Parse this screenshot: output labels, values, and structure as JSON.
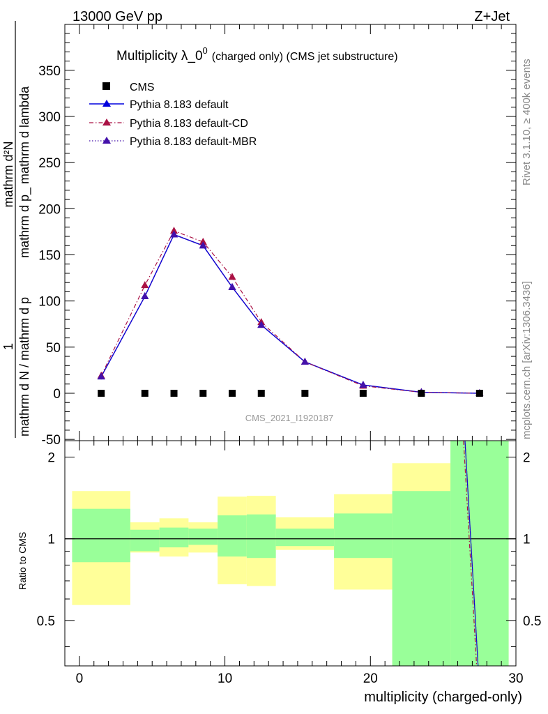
{
  "header": {
    "left": "13000 GeV pp",
    "right": "Z+Jet"
  },
  "side_labels": {
    "rivet": "Rivet 3.1.10, ≥ 400k events",
    "mcplots": "mcplots.cern.ch [arXiv:1306.3436]"
  },
  "colors": {
    "cms": "#000000",
    "default": "#0000dd",
    "cd": "#aa1144",
    "mbr": "#4411aa",
    "band_inner": "#99ff99",
    "band_outer": "#ffff99"
  },
  "chart_data": [
    {
      "type": "line",
      "title": "Multiplicity λ_0",
      "title_sup": "0",
      "title_suffix": "(charged only) (CMS jet substructure)",
      "watermark": "CMS_2021_I1920187",
      "ylabel_num": "1",
      "ylabel_den": "mathrm d N / mathrm d p",
      "ylabel_frac": "mathrm d²N",
      "ylabel_frac_den": "mathrm d p_ mathrm d lambda",
      "ylim": [
        -50,
        400
      ],
      "yticks": [
        -50,
        0,
        50,
        100,
        150,
        200,
        250,
        300,
        350
      ],
      "xlim": [
        -1,
        30
      ],
      "legend": [
        {
          "name": "CMS",
          "style": "marker-square"
        },
        {
          "name": "Pythia 8.183 default",
          "style": "solid"
        },
        {
          "name": "Pythia 8.183 default-CD",
          "style": "dashdot"
        },
        {
          "name": "Pythia 8.183 default-MBR",
          "style": "dotted"
        }
      ],
      "series": [
        {
          "name": "CMS",
          "x": [
            1.5,
            4.5,
            6.5,
            8.5,
            10.5,
            12.5,
            15.5,
            19.5,
            23.5,
            27.5
          ],
          "values": [
            0,
            0,
            0,
            0,
            0,
            0,
            0,
            0,
            0,
            0
          ]
        },
        {
          "name": "Pythia 8.183 default",
          "x": [
            1.5,
            4.5,
            6.5,
            8.5,
            10.5,
            12.5,
            15.5,
            19.5,
            23.5,
            27.5
          ],
          "values": [
            18,
            105,
            172,
            160,
            115,
            74,
            34,
            9,
            1,
            0
          ]
        },
        {
          "name": "Pythia 8.183 default-CD",
          "x": [
            1.5,
            4.5,
            6.5,
            8.5,
            10.5,
            12.5,
            15.5,
            19.5,
            23.5,
            27.5
          ],
          "values": [
            19,
            117,
            176,
            164,
            126,
            77,
            34,
            8,
            1,
            0
          ]
        },
        {
          "name": "Pythia 8.183 default-MBR",
          "x": [
            1.5,
            4.5,
            6.5,
            8.5,
            10.5,
            12.5,
            15.5,
            19.5,
            23.5,
            27.5
          ],
          "values": [
            18,
            105,
            172,
            160,
            115,
            74,
            34,
            9,
            1,
            0
          ]
        }
      ]
    },
    {
      "type": "area",
      "ylabel": "Ratio to CMS",
      "xlabel": "multiplicity (charged-only)",
      "ylim": [
        0.34,
        2.3
      ],
      "yticks": [
        0.5,
        1,
        2
      ],
      "xlim": [
        -1,
        30
      ],
      "xticks": [
        0,
        10,
        20,
        30
      ],
      "reference": 1,
      "bins": [
        {
          "lo": -0.5,
          "hi": 3.5,
          "inner": [
            0.82,
            1.29
          ],
          "outer": [
            0.57,
            1.5
          ]
        },
        {
          "lo": 3.5,
          "hi": 5.5,
          "inner": [
            0.9,
            1.08
          ],
          "outer": [
            0.89,
            1.15
          ]
        },
        {
          "lo": 5.5,
          "hi": 7.5,
          "inner": [
            0.93,
            1.1
          ],
          "outer": [
            0.86,
            1.19
          ]
        },
        {
          "lo": 7.5,
          "hi": 9.5,
          "inner": [
            0.95,
            1.09
          ],
          "outer": [
            0.89,
            1.15
          ]
        },
        {
          "lo": 9.5,
          "hi": 11.5,
          "inner": [
            0.86,
            1.22
          ],
          "outer": [
            0.68,
            1.43
          ]
        },
        {
          "lo": 11.5,
          "hi": 13.5,
          "inner": [
            0.85,
            1.23
          ],
          "outer": [
            0.67,
            1.44
          ]
        },
        {
          "lo": 13.5,
          "hi": 17.5,
          "inner": [
            0.94,
            1.09
          ],
          "outer": [
            0.91,
            1.2
          ]
        },
        {
          "lo": 17.5,
          "hi": 21.5,
          "inner": [
            0.85,
            1.24
          ],
          "outer": [
            0.65,
            1.46
          ]
        },
        {
          "lo": 21.5,
          "hi": 25.5,
          "inner": [
            0.34,
            1.5
          ],
          "outer": [
            0.34,
            1.9
          ]
        },
        {
          "lo": 25.5,
          "hi": 29.5,
          "inner": [
            0.34,
            2.3
          ],
          "outer": [
            0.34,
            2.3
          ]
        }
      ],
      "ratio_lines": [
        {
          "name": "Pythia 8.183 default",
          "x": [
            26.5,
            27.4
          ],
          "values": [
            2.3,
            0.34
          ]
        },
        {
          "name": "Pythia 8.183 default-CD",
          "x": [
            26.4,
            27.3
          ],
          "values": [
            2.3,
            0.34
          ]
        },
        {
          "name": "Pythia 8.183 default-MBR",
          "x": [
            26.5,
            27.4
          ],
          "values": [
            2.3,
            0.34
          ]
        }
      ]
    }
  ]
}
